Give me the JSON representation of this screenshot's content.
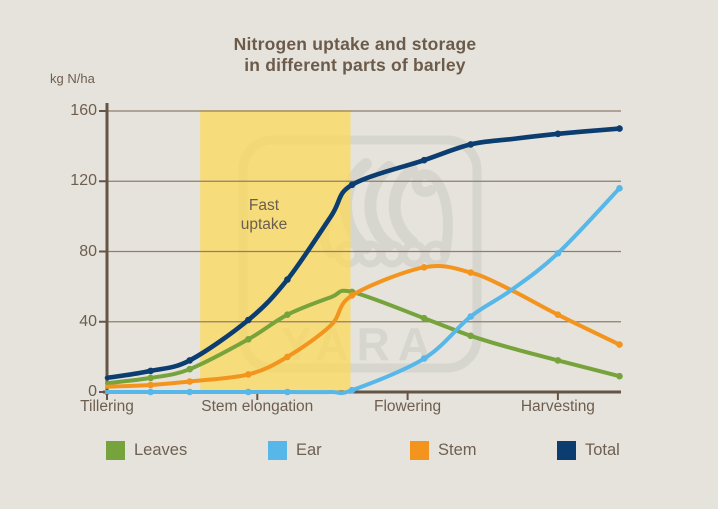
{
  "window": {
    "background": "#e5e3db"
  },
  "title": {
    "line1": "Nitrogen uptake and storage",
    "line2": "in different parts of barley"
  },
  "y_axis": {
    "unit_label": "kg N/ha",
    "ticks": [
      0,
      40,
      80,
      120,
      160
    ],
    "max": 160
  },
  "x_axis": {
    "categories": [
      "Tillering",
      "Stem elongation",
      "Flowering",
      "Harvesting"
    ]
  },
  "annotation": {
    "line1": "Fast",
    "line2": "uptake"
  },
  "watermark": {
    "text": "YARA",
    "color": "#d7d6ce"
  },
  "colors": {
    "background": "#e5e3db",
    "grid": "#8e7e6e",
    "axis": "#655547",
    "text": "#6e5e50",
    "title_text": "#6c5b4b",
    "band_fill": "#ffd953"
  },
  "chart_data": {
    "type": "line",
    "title": "Nitrogen uptake and storage in different parts of barley",
    "xlabel": "",
    "ylabel": "kg N/ha",
    "ylim": [
      0,
      160
    ],
    "grid": "horizontal",
    "legend_position": "bottom",
    "categories": [
      "Tillering",
      "Stem elongation",
      "Flowering",
      "Harvesting"
    ],
    "x_stage": [
      0,
      0.29,
      0.55,
      0.94,
      1.2,
      1.49,
      1.63,
      2.11,
      2.42,
      2.69,
      3.0,
      3.41
    ],
    "marker_indices": [
      1,
      2,
      3,
      4,
      6,
      7,
      8,
      10,
      11
    ],
    "series": [
      {
        "name": "Leaves",
        "color": "#76a33b",
        "values": [
          5,
          8,
          13,
          30,
          44,
          54,
          57,
          42,
          32,
          25,
          18,
          9
        ]
      },
      {
        "name": "Ear",
        "color": "#57b7e8",
        "values": [
          0,
          0,
          0,
          0,
          0,
          0,
          1,
          19,
          43,
          58,
          79,
          116
        ]
      },
      {
        "name": "Stem",
        "color": "#f3941e",
        "values": [
          3,
          4,
          6,
          10,
          20,
          38,
          55,
          71,
          68,
          58,
          44,
          27
        ]
      },
      {
        "name": "Total",
        "color": "#0c3d70",
        "values": [
          8,
          12,
          18,
          41,
          64,
          100,
          118,
          132,
          141,
          144,
          147,
          150
        ]
      }
    ],
    "annotations": [
      {
        "text": "Fast uptake",
        "x_range_stage": [
          0.62,
          1.62
        ],
        "band_color": "#ffd953",
        "band_opacity": 0.7
      }
    ]
  }
}
